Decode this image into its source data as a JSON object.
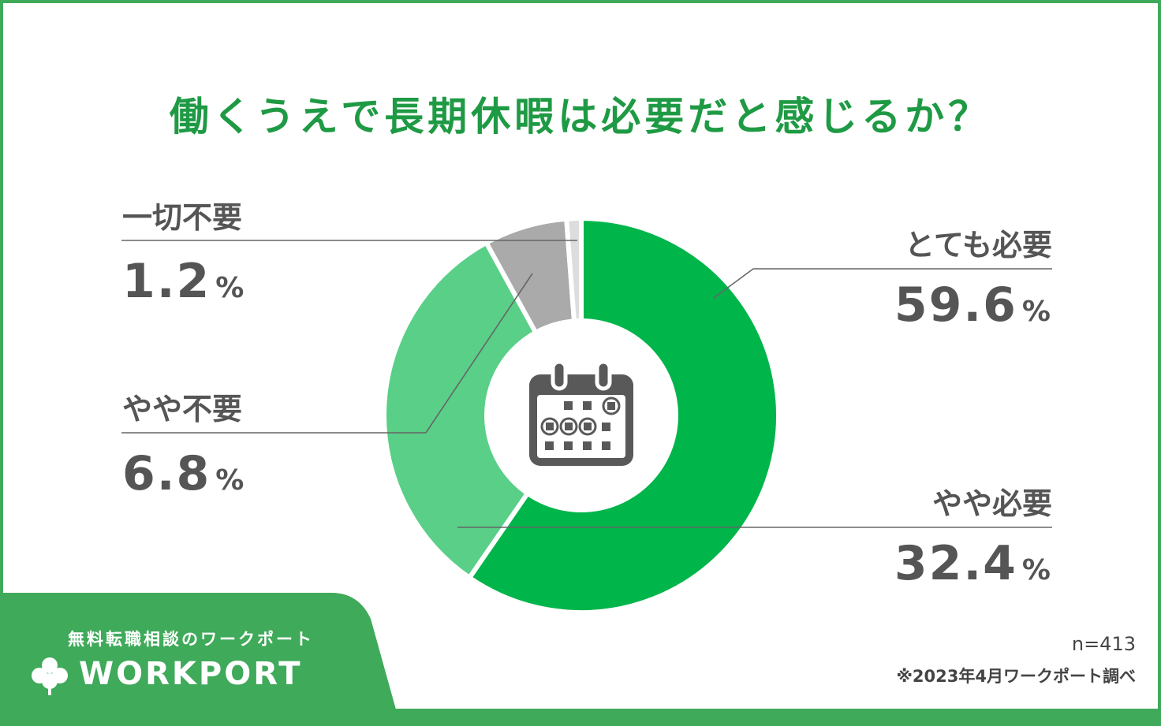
{
  "title": "働くうえで長期休暇は必要だと感じるか？",
  "colors": {
    "frame": "#3faa5a",
    "title": "#1f9a44",
    "text": "#555555",
    "icon": "#595959"
  },
  "chart_data": {
    "type": "pie",
    "variant": "donut",
    "center_icon": "calendar-icon",
    "slices": [
      {
        "label": "とても必要",
        "value": 59.6,
        "unit": "%",
        "color": "#00b54a"
      },
      {
        "label": "やや必要",
        "value": 32.4,
        "unit": "%",
        "color": "#59cf87"
      },
      {
        "label": "やや不要",
        "value": 6.8,
        "unit": "%",
        "color": "#aaaaaa"
      },
      {
        "label": "一切不要",
        "value": 1.2,
        "unit": "%",
        "color": "#dddddd"
      }
    ]
  },
  "footer": {
    "tagline": "無料転職相談のワークポート",
    "brand": "WORKPORT",
    "logo_icon": "clover-icon",
    "sample_size": "n=413",
    "source": "※2023年4月ワークポート調べ"
  }
}
